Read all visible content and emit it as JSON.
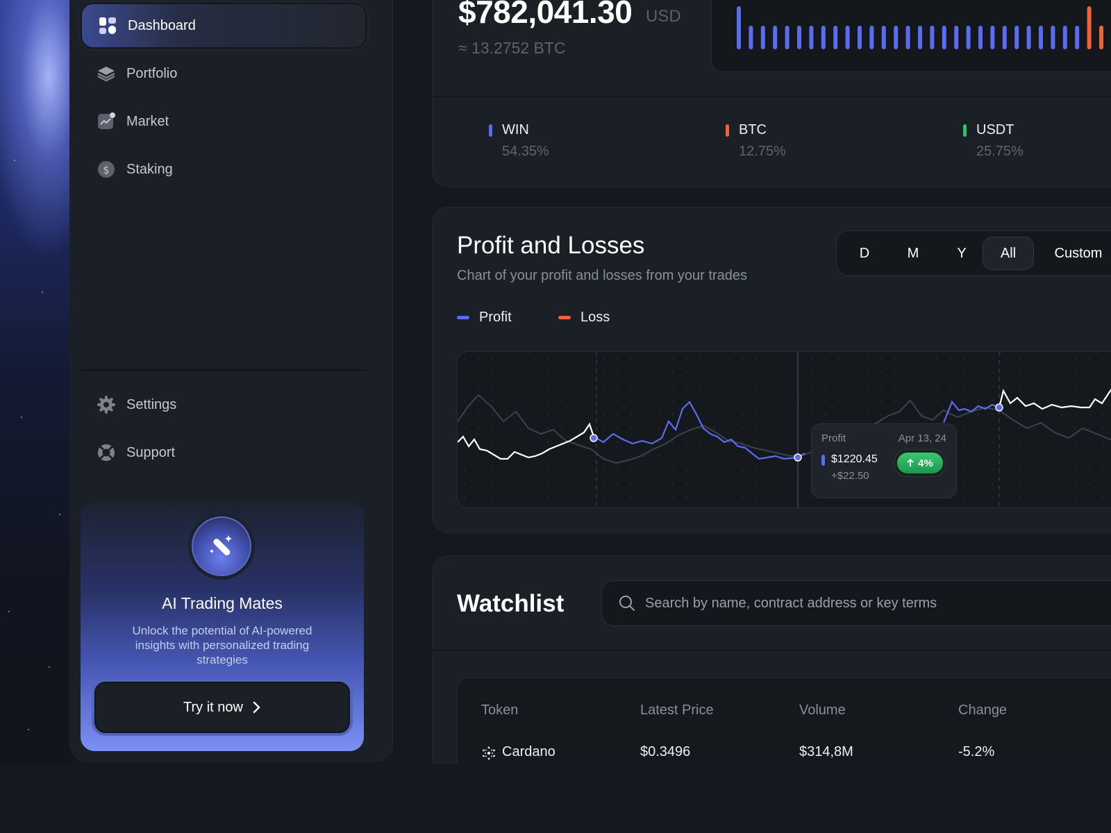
{
  "sidebar": {
    "nav": [
      {
        "label": "Dashboard",
        "icon": "grid-icon",
        "active": true
      },
      {
        "label": "Portfolio",
        "icon": "layers-icon"
      },
      {
        "label": "Market",
        "icon": "chart-icon"
      },
      {
        "label": "Staking",
        "icon": "dollar-icon"
      }
    ],
    "bottom_nav": [
      {
        "label": "Settings",
        "icon": "gear-icon"
      },
      {
        "label": "Support",
        "icon": "lifebuoy-icon"
      }
    ],
    "promo": {
      "title": "AI Trading Mates",
      "description": "Unlock the potential of AI-powered insights with personalized trading strategies",
      "button_label": "Try it now"
    }
  },
  "balance": {
    "amount": "$782,041.30",
    "currency": "USD",
    "btc_equivalent": "≈ 13.2752 BTC"
  },
  "allocation": [
    {
      "name": "WIN",
      "percent": "54.35%",
      "color": "#5b6cf0"
    },
    {
      "name": "BTC",
      "percent": "12.75%",
      "color": "#f0623a"
    },
    {
      "name": "USDT",
      "percent": "25.75%",
      "color": "#2fc26b"
    }
  ],
  "pnl": {
    "title": "Profit and Losses",
    "subtitle": "Chart of your profit and losses from your trades",
    "ranges": [
      "D",
      "M",
      "Y",
      "All",
      "Custom"
    ],
    "active_range": "All",
    "legend": [
      {
        "label": "Profit",
        "color": "#5b6cf0"
      },
      {
        "label": "Loss",
        "color": "#f0623a"
      }
    ],
    "tooltip": {
      "label": "Profit",
      "date": "Apr 13, 24",
      "value": "$1220.45",
      "delta": "+$22.50",
      "change": "4%"
    }
  },
  "watchlist": {
    "title": "Watchlist",
    "search_placeholder": "Search by name, contract address or key terms",
    "columns": [
      "Token",
      "Latest Price",
      "Volume",
      "Change"
    ],
    "rows": [
      {
        "token": "Cardano",
        "price": "$0.3496",
        "volume": "$314,8M",
        "change": "-5.2%"
      }
    ]
  },
  "colors": {
    "accent": "#5b6cf0",
    "loss": "#f0623a",
    "gain": "#2fc26b"
  }
}
